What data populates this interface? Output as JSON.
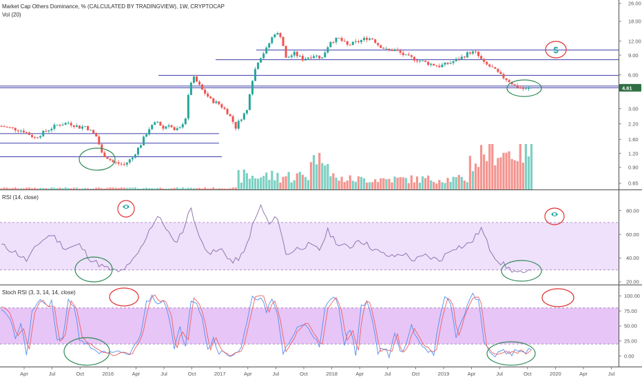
{
  "colors": {
    "up": "#26a69a",
    "down": "#ef5350",
    "vol_up": "#7dd0c3",
    "vol_down": "#f4948f",
    "level_line": "#3b3ba8",
    "rsi_line": "#8a6aa8",
    "rsi_band": "#efe0fb",
    "stoch_k": "#4e8ff0",
    "stoch_d": "#f05d5d",
    "stoch_band": "#e7c5f7",
    "ellipse_green": "#2e8b57",
    "ellipse_red": "#e03030",
    "badge": "#2f6f43"
  },
  "main_pane": {
    "title": "Market Cap Others Dominance, % (CALCULATED BY TRADINGVIEW), 1W, CRYPTOCAP",
    "volume_label": "Vol (20)",
    "last_value_badge": "4.61",
    "annotations": {
      "dollar_icon": "$"
    }
  },
  "rsi_pane": {
    "title": "RSI (14, close)"
  },
  "stoch_pane": {
    "title": "Stoch RSI (3, 3, 14, 14, close)"
  },
  "chart_data": [
    {
      "type": "candlestick",
      "title": "Market Cap Others Dominance, % (CALCULATED BY TRADINGVIEW), 1W, CRYPTOCAP",
      "y_scale": "log",
      "y_ticks": [
        "26.00",
        "18.00",
        "12.00",
        "9.00",
        "6.00",
        "4.61",
        "3.00",
        "2.20",
        "1.60",
        "1.20",
        "0.90",
        "0.65"
      ],
      "x_ticks": [
        "Apr",
        "Jul",
        "Oct",
        "2016",
        "Apr",
        "Jul",
        "Oct",
        "2017",
        "Apr",
        "Jul",
        "Oct",
        "2018",
        "Apr",
        "Jul",
        "Oct",
        "2019",
        "Apr",
        "Jul",
        "Oct",
        "2020",
        "Apr",
        "Jul"
      ],
      "horizontal_levels": [
        10.0,
        8.2,
        5.95,
        4.78,
        4.61,
        1.8,
        1.48,
        1.12
      ],
      "keyframes": [
        [
          0,
          2.1
        ],
        [
          4,
          2.0
        ],
        [
          8,
          1.9
        ],
        [
          12,
          1.65
        ],
        [
          16,
          1.9
        ],
        [
          20,
          2.15
        ],
        [
          24,
          2.25
        ],
        [
          28,
          2.05
        ],
        [
          30,
          2.1
        ],
        [
          34,
          1.7
        ],
        [
          36,
          1.2
        ],
        [
          40,
          1.0
        ],
        [
          44,
          0.95
        ],
        [
          47,
          1.1
        ],
        [
          50,
          1.45
        ],
        [
          53,
          2.0
        ],
        [
          56,
          2.3
        ],
        [
          58,
          2.0
        ],
        [
          60,
          2.2
        ],
        [
          62,
          1.9
        ],
        [
          64,
          2.0
        ],
        [
          66,
          2.5
        ],
        [
          68,
          5.2
        ],
        [
          69,
          5.6
        ],
        [
          72,
          4.4
        ],
        [
          75,
          3.6
        ],
        [
          78,
          3.3
        ],
        [
          81,
          2.8
        ],
        [
          84,
          2.05
        ],
        [
          86,
          2.5
        ],
        [
          88,
          2.9
        ],
        [
          90,
          5.5
        ],
        [
          92,
          8.0
        ],
        [
          95,
          10.2
        ],
        [
          98,
          14.2
        ],
        [
          100,
          13.5
        ],
        [
          102,
          8.4
        ],
        [
          105,
          9.3
        ],
        [
          108,
          8.3
        ],
        [
          112,
          9.0
        ],
        [
          115,
          8.5
        ],
        [
          118,
          12.0
        ],
        [
          121,
          12.6
        ],
        [
          124,
          11.0
        ],
        [
          128,
          11.9
        ],
        [
          131,
          12.8
        ],
        [
          133,
          12.6
        ],
        [
          135,
          11.2
        ],
        [
          138,
          10.0
        ],
        [
          141,
          10.0
        ],
        [
          145,
          8.8
        ],
        [
          149,
          8.2
        ],
        [
          153,
          7.6
        ],
        [
          157,
          7.2
        ],
        [
          161,
          7.7
        ],
        [
          165,
          8.6
        ],
        [
          168,
          9.6
        ],
        [
          170,
          9.4
        ],
        [
          173,
          7.6
        ],
        [
          176,
          6.9
        ],
        [
          179,
          5.9
        ],
        [
          182,
          5.3
        ],
        [
          184,
          4.8
        ],
        [
          186,
          4.6
        ],
        [
          188,
          4.45
        ],
        [
          190,
          4.61
        ]
      ]
    },
    {
      "type": "line",
      "title": "RSI (14, close)",
      "y_ticks": [
        "80.00",
        "60.00",
        "40.00",
        "20.00"
      ],
      "ylim": [
        20,
        85
      ],
      "band": [
        30,
        70
      ],
      "keyframes": [
        [
          0,
          51
        ],
        [
          5,
          45
        ],
        [
          9,
          38
        ],
        [
          14,
          54
        ],
        [
          18,
          60
        ],
        [
          23,
          48
        ],
        [
          28,
          51
        ],
        [
          32,
          39
        ],
        [
          37,
          32
        ],
        [
          42,
          28
        ],
        [
          46,
          34
        ],
        [
          50,
          48
        ],
        [
          53,
          64
        ],
        [
          56,
          75
        ],
        [
          59,
          66
        ],
        [
          62,
          52
        ],
        [
          65,
          63
        ],
        [
          68,
          83
        ],
        [
          71,
          56
        ],
        [
          75,
          44
        ],
        [
          79,
          47
        ],
        [
          83,
          36
        ],
        [
          87,
          44
        ],
        [
          90,
          67
        ],
        [
          93,
          84
        ],
        [
          96,
          68
        ],
        [
          99,
          75
        ],
        [
          102,
          43
        ],
        [
          106,
          48
        ],
        [
          110,
          51
        ],
        [
          114,
          47
        ],
        [
          117,
          63
        ],
        [
          121,
          51
        ],
        [
          125,
          49
        ],
        [
          128,
          56
        ],
        [
          132,
          50
        ],
        [
          136,
          44
        ],
        [
          140,
          41
        ],
        [
          144,
          44
        ],
        [
          148,
          38
        ],
        [
          152,
          42
        ],
        [
          157,
          38
        ],
        [
          162,
          49
        ],
        [
          166,
          50
        ],
        [
          169,
          55
        ],
        [
          172,
          65
        ],
        [
          175,
          48
        ],
        [
          178,
          38
        ],
        [
          182,
          31
        ],
        [
          185,
          28
        ],
        [
          188,
          26
        ],
        [
          190,
          32
        ]
      ]
    },
    {
      "type": "line",
      "title": "Stoch RSI (3, 3, 14, 14, close)",
      "y_ticks": [
        "100.00",
        "75.00",
        "50.00",
        "25.00",
        "0.00"
      ],
      "ylim": [
        -5,
        105
      ],
      "band": [
        20,
        80
      ],
      "keyframes": [
        [
          0,
          82
        ],
        [
          3,
          65
        ],
        [
          5,
          30
        ],
        [
          7,
          50
        ],
        [
          9,
          5
        ],
        [
          11,
          70
        ],
        [
          14,
          96
        ],
        [
          16,
          82
        ],
        [
          18,
          88
        ],
        [
          20,
          22
        ],
        [
          22,
          32
        ],
        [
          24,
          92
        ],
        [
          26,
          85
        ],
        [
          28,
          30
        ],
        [
          30,
          22
        ],
        [
          33,
          12
        ],
        [
          36,
          4
        ],
        [
          40,
          3
        ],
        [
          44,
          6
        ],
        [
          46,
          2
        ],
        [
          48,
          18
        ],
        [
          50,
          40
        ],
        [
          52,
          88
        ],
        [
          54,
          100
        ],
        [
          56,
          90
        ],
        [
          58,
          95
        ],
        [
          60,
          70
        ],
        [
          62,
          10
        ],
        [
          64,
          45
        ],
        [
          66,
          20
        ],
        [
          68,
          96
        ],
        [
          70,
          90
        ],
        [
          72,
          65
        ],
        [
          74,
          10
        ],
        [
          76,
          30
        ],
        [
          78,
          8
        ],
        [
          80,
          4
        ],
        [
          82,
          2
        ],
        [
          84,
          6
        ],
        [
          86,
          12
        ],
        [
          88,
          55
        ],
        [
          90,
          95
        ],
        [
          93,
          100
        ],
        [
          95,
          72
        ],
        [
          97,
          92
        ],
        [
          99,
          68
        ],
        [
          101,
          5
        ],
        [
          103,
          22
        ],
        [
          106,
          45
        ],
        [
          109,
          55
        ],
        [
          112,
          35
        ],
        [
          114,
          12
        ],
        [
          116,
          78
        ],
        [
          119,
          100
        ],
        [
          121,
          82
        ],
        [
          123,
          22
        ],
        [
          125,
          45
        ],
        [
          127,
          5
        ],
        [
          129,
          80
        ],
        [
          131,
          95
        ],
        [
          133,
          58
        ],
        [
          135,
          8
        ],
        [
          137,
          14
        ],
        [
          139,
          2
        ],
        [
          141,
          38
        ],
        [
          143,
          4
        ],
        [
          145,
          16
        ],
        [
          147,
          50
        ],
        [
          149,
          32
        ],
        [
          151,
          18
        ],
        [
          153,
          10
        ],
        [
          155,
          5
        ],
        [
          157,
          58
        ],
        [
          159,
          95
        ],
        [
          161,
          88
        ],
        [
          163,
          30
        ],
        [
          165,
          60
        ],
        [
          167,
          85
        ],
        [
          169,
          100
        ],
        [
          171,
          98
        ],
        [
          173,
          20
        ],
        [
          175,
          8
        ],
        [
          177,
          2
        ],
        [
          180,
          8
        ],
        [
          183,
          5
        ],
        [
          186,
          10
        ],
        [
          188,
          3
        ],
        [
          190,
          12
        ]
      ]
    }
  ]
}
